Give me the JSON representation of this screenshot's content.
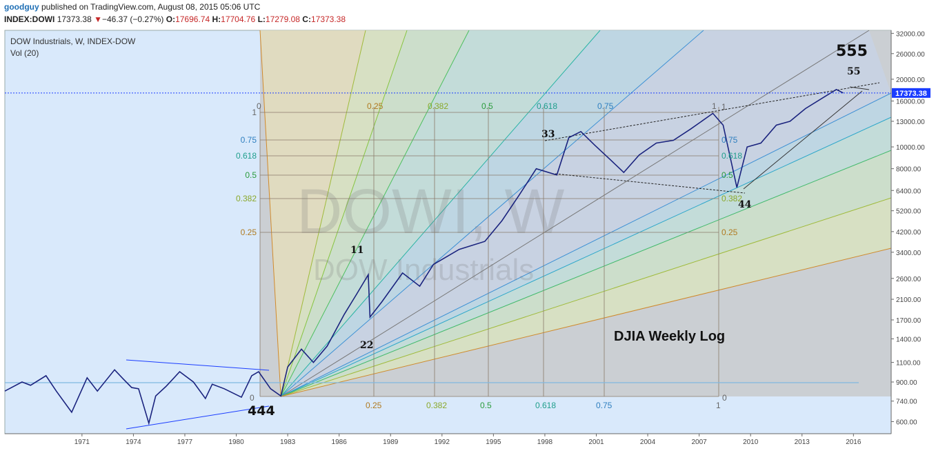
{
  "header": {
    "user": "goodguy",
    "published": "published on TradingView.com, August 08, 2015 05:06 UTC",
    "symbol": "INDEX:DOWI",
    "last": "17373.38",
    "change": "−46.37 (−0.27%)",
    "open_label": "O:",
    "open": "17696.74",
    "high_label": "H:",
    "high": "17704.76",
    "low_label": "L:",
    "low": "17279.08",
    "close_label": "C:",
    "close": "17373.38"
  },
  "legend": {
    "title": "DOW Industrials, W, INDEX-DOW",
    "volume": "Vol (20)"
  },
  "watermark": {
    "main": "DOWI, W",
    "sub": "DOW Industrials"
  },
  "annotations": {
    "main_text": "DJIA Weekly Log",
    "points": [
      "444",
      "11",
      "22",
      "33",
      "44",
      "55",
      "555"
    ]
  },
  "price_marker": "17373.38",
  "colors": {
    "background": "#d9e9fb",
    "fib_zone": "#c8c8c8",
    "price": "#1a237e",
    "price_line": "#1a3cff",
    "marker": "#1a3cff"
  },
  "chart_data": {
    "type": "line",
    "title": "DOW Industrials, W, INDEX-DOW",
    "scale": "log",
    "xlim": [
      1966.5,
      2018.2
    ],
    "ylim": [
      530,
      33000
    ],
    "x_ticks": [
      "1971",
      "1974",
      "1977",
      "1980",
      "1983",
      "1986",
      "1989",
      "1992",
      "1995",
      "1998",
      "2001",
      "2004",
      "2007",
      "2010",
      "2013",
      "2016"
    ],
    "y_ticks": [
      "32000.00",
      "26000.00",
      "20000.00",
      "16000.00",
      "13000.00",
      "10000.00",
      "8000.00",
      "6400.00",
      "5200.00",
      "4200.00",
      "3400.00",
      "2600.00",
      "2100.00",
      "1700.00",
      "1400.00",
      "1100.00",
      "900.00",
      "740.00",
      "600.00"
    ],
    "series": [
      {
        "values": [
          [
            1966.5,
            820
          ],
          [
            1967.5,
            900
          ],
          [
            1968.0,
            870
          ],
          [
            1968.9,
            960
          ],
          [
            1969.5,
            820
          ],
          [
            1970.4,
            660
          ],
          [
            1971.3,
            940
          ],
          [
            1971.9,
            820
          ],
          [
            1972.9,
            1020
          ],
          [
            1973.4,
            930
          ],
          [
            1973.9,
            850
          ],
          [
            1974.3,
            840
          ],
          [
            1974.9,
            590
          ],
          [
            1975.3,
            780
          ],
          [
            1975.9,
            860
          ],
          [
            1976.7,
            1000
          ],
          [
            1977.5,
            900
          ],
          [
            1978.2,
            760
          ],
          [
            1978.6,
            880
          ],
          [
            1979.3,
            840
          ],
          [
            1980.3,
            770
          ],
          [
            1980.9,
            960
          ],
          [
            1981.3,
            1000
          ],
          [
            1982.0,
            840
          ],
          [
            1982.6,
            780
          ],
          [
            1983.0,
            1050
          ],
          [
            1983.8,
            1260
          ],
          [
            1984.5,
            1100
          ],
          [
            1985.3,
            1300
          ],
          [
            1986.3,
            1800
          ],
          [
            1987.0,
            2200
          ],
          [
            1987.7,
            2700
          ],
          [
            1987.8,
            1750
          ],
          [
            1988.5,
            2050
          ],
          [
            1989.7,
            2750
          ],
          [
            1990.7,
            2400
          ],
          [
            1991.5,
            3000
          ],
          [
            1993.0,
            3500
          ],
          [
            1994.5,
            3800
          ],
          [
            1995.5,
            4700
          ],
          [
            1996.5,
            6100
          ],
          [
            1997.5,
            8000
          ],
          [
            1998.7,
            7500
          ],
          [
            1999.4,
            11000
          ],
          [
            2000.1,
            11700
          ],
          [
            2000.9,
            10200
          ],
          [
            2001.8,
            8800
          ],
          [
            2002.6,
            7700
          ],
          [
            2003.5,
            9200
          ],
          [
            2004.5,
            10400
          ],
          [
            2005.5,
            10700
          ],
          [
            2006.5,
            12000
          ],
          [
            2007.8,
            14100
          ],
          [
            2008.4,
            12500
          ],
          [
            2009.2,
            6600
          ],
          [
            2009.8,
            10000
          ],
          [
            2010.6,
            10400
          ],
          [
            2011.5,
            12500
          ],
          [
            2012.3,
            13000
          ],
          [
            2013.2,
            14800
          ],
          [
            2014.2,
            16500
          ],
          [
            2015.0,
            18000
          ],
          [
            2015.4,
            17373.38
          ]
        ]
      }
    ],
    "fib_time_labels": [
      "0",
      "0.25",
      "0.382",
      "0.5",
      "0.618",
      "0.75",
      "1"
    ],
    "fib_price_labels": [
      "1",
      "0.75",
      "0.618",
      "0.5",
      "0.382",
      "0.25",
      "0"
    ],
    "price_line": 17373.38,
    "grid": false,
    "legend_position": "top-left"
  }
}
